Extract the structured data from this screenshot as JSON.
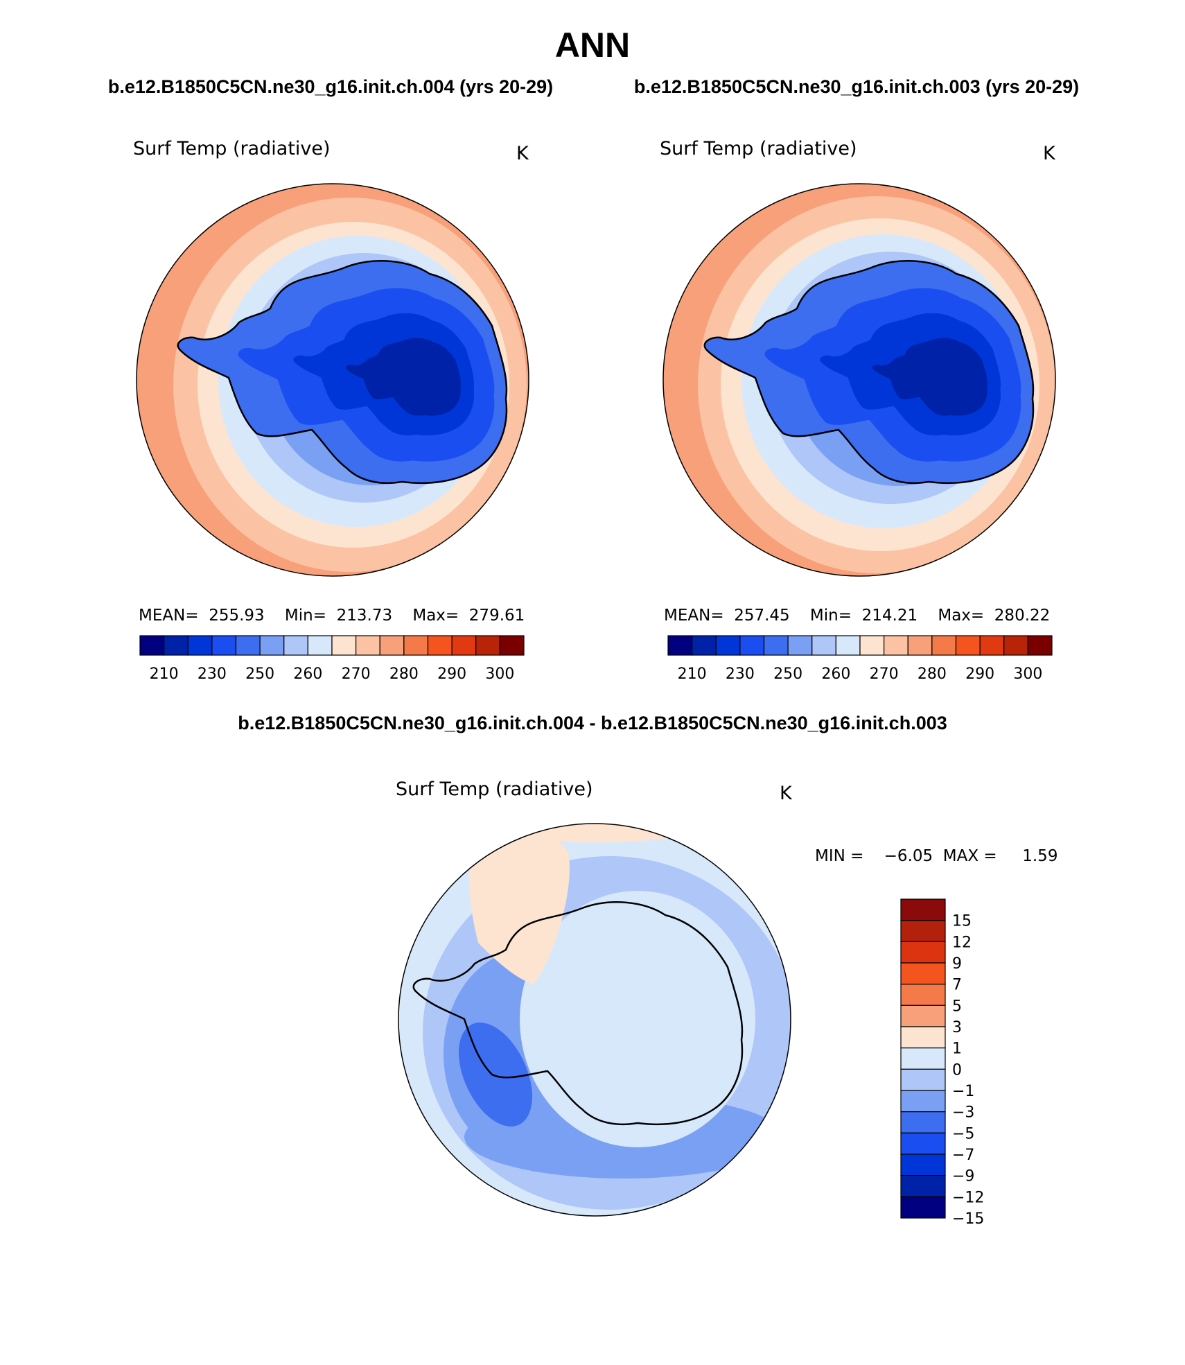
{
  "page": {
    "season": "ANN",
    "top_header_left": "b.e12.B1850C5CN.ne30_g16.init.ch.004 (yrs 20-29)",
    "top_header_right": "b.e12.B1850C5CN.ne30_g16.init.ch.003 (yrs 20-29)",
    "diff_header": "b.e12.B1850C5CN.ne30_g16.init.ch.004 - b.e12.B1850C5CN.ne30_g16.init.ch.003"
  },
  "panels": [
    {
      "id": "case1",
      "variable": "Surf Temp (radiative)",
      "units": "K",
      "stats": "MEAN=  255.93    Min=  213.73    Max=  279.61",
      "colorbar": {
        "colors": [
          "#000080",
          "#0022a8",
          "#0035d8",
          "#1a4ef0",
          "#3d6ef0",
          "#7aa0f4",
          "#aec6f8",
          "#d8e8fb",
          "#fde4d0",
          "#fbc3a4",
          "#f7a07a",
          "#f57a4a",
          "#f4541e",
          "#e23a10",
          "#b82408",
          "#7a0000"
        ],
        "tick_labels": [
          "210",
          "230",
          "250",
          "260",
          "270",
          "280",
          "290",
          "300"
        ]
      }
    },
    {
      "id": "case2",
      "variable": "Surf Temp (radiative)",
      "units": "K",
      "stats": "MEAN=  257.45    Min=  214.21    Max=  280.22",
      "colorbar": {
        "colors": [
          "#000080",
          "#0022a8",
          "#0035d8",
          "#1a4ef0",
          "#3d6ef0",
          "#7aa0f4",
          "#aec6f8",
          "#d8e8fb",
          "#fde4d0",
          "#fbc3a4",
          "#f7a07a",
          "#f57a4a",
          "#f4541e",
          "#e23a10",
          "#b82408",
          "#7a0000"
        ],
        "tick_labels": [
          "210",
          "230",
          "250",
          "260",
          "270",
          "280",
          "290",
          "300"
        ]
      }
    },
    {
      "id": "diff",
      "variable": "Surf Temp (radiative)",
      "units": "K",
      "stats": "MIN =    −6.05  MAX =     1.59",
      "colorbar": {
        "colors": [
          "#8b0a0a",
          "#b3200c",
          "#dc3410",
          "#f4541e",
          "#f57a4a",
          "#f7a07a",
          "#fde4d0",
          "#d8e8fb",
          "#aec6f8",
          "#7aa0f4",
          "#3d6ef0",
          "#1a4ef0",
          "#0035d8",
          "#0022a8",
          "#000080"
        ],
        "tick_labels": [
          "15",
          "12",
          "9",
          "7",
          "5",
          "3",
          "1",
          "0",
          "−1",
          "−3",
          "−5",
          "−7",
          "−9",
          "−12",
          "−15"
        ]
      }
    }
  ],
  "fill_colors": {
    "ocean_warm": "#f7a07a",
    "ocean_mid": "#fbc3a4",
    "ocean_light": "#fde4d0",
    "ice_light": "#d8e8fb",
    "ice_mid": "#aec6f8",
    "ice_blue": "#7aa0f4",
    "land_1": "#3d6ef0",
    "land_2": "#1a4ef0",
    "land_3": "#0035d8",
    "land_4": "#0022a8"
  }
}
